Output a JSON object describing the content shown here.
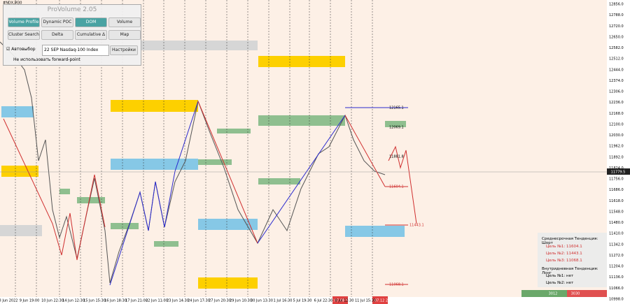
{
  "symbol": "#NDX,M30",
  "panel": {
    "title": "ProVolume 2.05",
    "buttons": [
      "Volume Profile",
      "Dynamic POC",
      "DOM",
      "Volume",
      "Cluster Search",
      "Delta",
      "Cumulative Δ",
      "Map"
    ],
    "auto_select": "Автовыбор",
    "instrument": "22 SEP Nasdaq-100 Index",
    "settings": "Настройки",
    "forward_point": "Не использовать forward-point"
  },
  "price_axis": {
    "labels": [
      "12856.0",
      "12788.0",
      "12720.0",
      "12650.0",
      "12582.0",
      "12512.0",
      "12444.0",
      "12374.0",
      "12306.0",
      "12236.0",
      "12168.0",
      "12100.0",
      "12030.0",
      "11962.0",
      "11892.0",
      "11824.0",
      "11756.0",
      "11686.0",
      "11618.0",
      "11548.0",
      "11480.0",
      "11410.0",
      "11342.0",
      "11272.0",
      "11204.0",
      "11136.0",
      "11066.0",
      "10998.0"
    ],
    "current": "11779.5"
  },
  "time_axis": {
    "labels": [
      "8 Jun 2022",
      "9 Jun 19:00",
      "10 Jun 22:30",
      "14 Jun 12:30",
      "15 Jun 15:30",
      "16 Jun 18:30",
      "17 Jun 21:00",
      "22 Jun 11:00",
      "23 Jun 14:30",
      "24 Jun 17:30",
      "27 Jun 20:30",
      "29 Jun 10:30",
      "30 Jun 13:30",
      "1 Jul 16:30",
      "5 Jul 19:30",
      "6 Jul 22:30",
      "8 Jul 12:30",
      "11 Jul 15:30"
    ],
    "markers": [
      "2022.07.08 18:00",
      "2022.07.12 22:00"
    ]
  },
  "levels": [
    "12165.1",
    "12069.1",
    "11881.8",
    "11604.1",
    "11443.1",
    "11068.1"
  ],
  "info": {
    "mid_term": "Среднесрочная Тенденция: Шорт",
    "mid_targets": [
      "Цель №1: 11604.1",
      "Цель №2: 11443.1",
      "Цель №3: 11068.1"
    ],
    "intraday": "Внутридневная Тенденция: Лонг",
    "intraday_targets": [
      "Цель №1: нет",
      "Цель №2: нет"
    ]
  },
  "footer": {
    "left": "3012",
    "right": "3030"
  }
}
